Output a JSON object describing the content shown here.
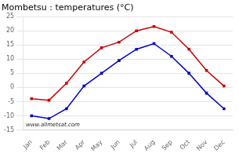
{
  "chart_data": {
    "type": "line",
    "title": "Mombetsu : temperatures (°C)",
    "categories": [
      "Jan",
      "Feb",
      "Mar",
      "Apr",
      "May",
      "Jun",
      "Jul",
      "Aug",
      "Sep",
      "Oct",
      "Nov",
      "Dec"
    ],
    "series": [
      {
        "color": "#cc0000",
        "values": [
          -4,
          -4.5,
          1.5,
          9,
          14,
          16,
          20,
          21.5,
          19.5,
          13.5,
          6,
          0.5
        ]
      },
      {
        "color": "#0000cc",
        "values": [
          -10,
          -11,
          -7.5,
          0.5,
          5,
          9.5,
          13.5,
          15.5,
          11,
          5,
          -2,
          -7.5
        ]
      }
    ],
    "marker": "square",
    "line_style": "solid",
    "ylim": [
      -15,
      25
    ],
    "yticks": [
      -15,
      -10,
      -5,
      0,
      5,
      10,
      15,
      20,
      25
    ],
    "grid": "y",
    "annotations": [
      "www.allmetsat.com"
    ]
  }
}
